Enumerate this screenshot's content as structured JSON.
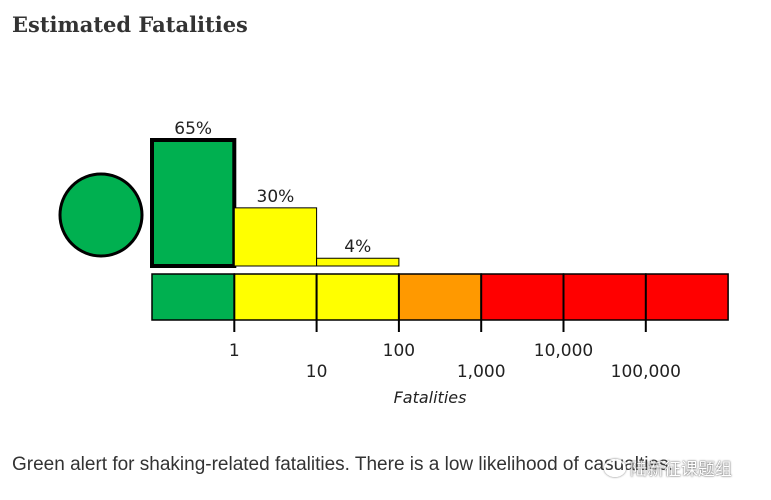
{
  "page": {
    "title": "Estimated Fatalities",
    "caption": "Green alert for shaking-related fatalities. There is a low likelihood of casualties.",
    "watermark": "陆新征课题组"
  },
  "colors": {
    "green": "#00b050",
    "yellow": "#ffff00",
    "orange": "#ff9900",
    "red": "#ff0000",
    "outline": "#000000"
  },
  "chart_data": {
    "type": "bar",
    "title": "",
    "xlabel": "Fatalities",
    "ylabel": "",
    "alert_level": "green",
    "categories": [
      "0-1",
      "1-10",
      "10-100",
      "100-1,000",
      "1,000-10,000",
      "10,000-100,000",
      "100,000+"
    ],
    "category_colors": [
      "green",
      "yellow",
      "yellow",
      "orange",
      "red",
      "red",
      "red"
    ],
    "values": [
      65,
      30,
      4,
      0,
      0,
      0,
      0
    ],
    "value_labels": [
      "65%",
      "30%",
      "4%",
      "",
      "",
      "",
      ""
    ],
    "ylim": [
      0,
      65
    ],
    "highlight_index": 0,
    "tick_labels": [
      "1",
      "10",
      "100",
      "1,000",
      "10,000",
      "100,000"
    ]
  }
}
